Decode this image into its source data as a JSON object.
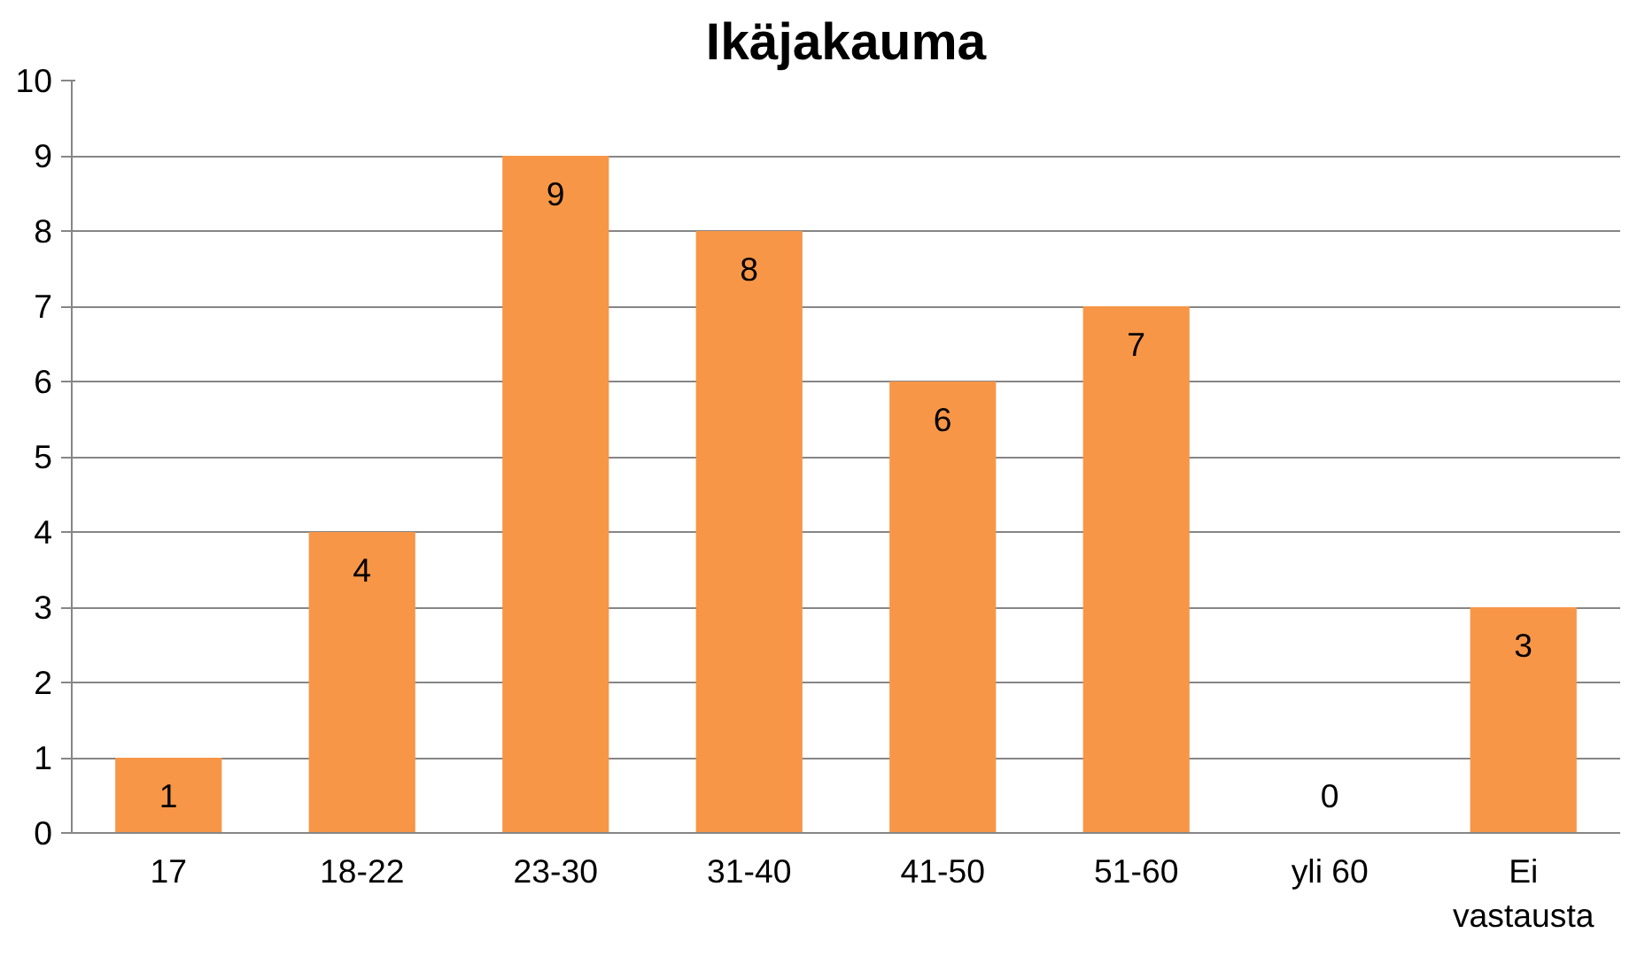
{
  "chart_data": {
    "type": "bar",
    "title": "Ikäjakauma",
    "categories": [
      "17",
      "18-22",
      "23-30",
      "31-40",
      "41-50",
      "51-60",
      "yli 60",
      "Ei vastausta"
    ],
    "values": [
      1,
      4,
      9,
      8,
      6,
      7,
      0,
      3
    ],
    "color": "#f79646",
    "ylim": [
      0,
      10
    ],
    "yticks": [
      0,
      1,
      2,
      3,
      4,
      5,
      6,
      7,
      8,
      9,
      10
    ],
    "grid": "y",
    "data_labels": true
  }
}
